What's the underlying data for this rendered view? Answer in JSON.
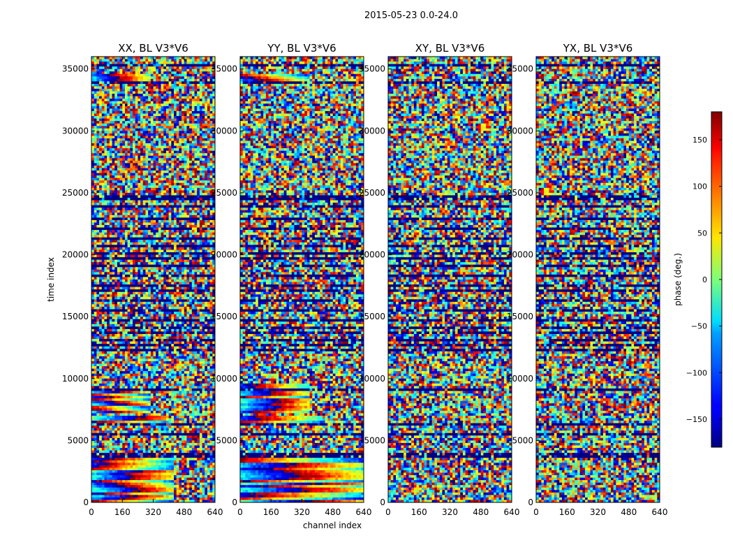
{
  "figure": {
    "suptitle": "2015-05-23 0.0-24.0"
  },
  "chart_data": {
    "type": "heatmap",
    "title": "2015-05-23 0.0-24.0",
    "xlabel": "channel index",
    "ylabel": "time index",
    "xlim": [
      0,
      640
    ],
    "ylim": [
      0,
      36000
    ],
    "x_ticks": [
      0,
      160,
      320,
      480,
      640
    ],
    "y_ticks": [
      0,
      5000,
      10000,
      15000,
      20000,
      25000,
      30000,
      35000
    ],
    "colormap": "jet",
    "colorbar": {
      "label": "phase (deg.)",
      "range": [
        -180,
        180
      ],
      "ticks": [
        -150,
        -100,
        -50,
        0,
        50,
        100,
        150
      ],
      "tick_labels": [
        "−150",
        "−100",
        "−50",
        "0",
        "50",
        "100",
        "150"
      ],
      "placement": "right"
    },
    "panels": [
      {
        "title": "XX, BL V3*V6",
        "flagged_time_bands": [
          [
            3700,
            3900
          ],
          [
            5500,
            5650
          ],
          [
            6300,
            6400
          ],
          [
            9050,
            9150
          ],
          [
            10950,
            11050
          ],
          [
            12200,
            12350
          ],
          [
            12700,
            12850
          ],
          [
            13100,
            13250
          ],
          [
            13600,
            13750
          ],
          [
            14100,
            14250
          ],
          [
            14600,
            14750
          ],
          [
            15500,
            15650
          ],
          [
            16300,
            16450
          ],
          [
            17000,
            17150
          ],
          [
            17500,
            17650
          ],
          [
            18200,
            18350
          ],
          [
            19000,
            19150
          ],
          [
            19600,
            19750
          ],
          [
            20000,
            20150
          ],
          [
            20700,
            20850
          ],
          [
            21300,
            21450
          ],
          [
            22000,
            22150
          ],
          [
            22900,
            23050
          ],
          [
            23800,
            23950
          ],
          [
            24500,
            24700
          ],
          [
            27950,
            28050
          ],
          [
            33850,
            33950
          ],
          [
            35200,
            35300
          ]
        ],
        "coherent_phase_regions": [
          {
            "time_range": [
              0,
              3600
            ],
            "channel_range": [
              0,
              420
            ]
          },
          {
            "time_range": [
              6200,
              7000
            ],
            "channel_range": [
              0,
              400
            ]
          },
          {
            "time_range": [
              7200,
              9000
            ],
            "channel_range": [
              0,
              300
            ]
          },
          {
            "time_range": [
              33800,
              34600
            ],
            "channel_range": [
              0,
              300
            ]
          }
        ]
      },
      {
        "title": "YY, BL V3*V6",
        "flagged_time_bands": [
          [
            3700,
            3900
          ],
          [
            5500,
            5650
          ],
          [
            6300,
            6400
          ],
          [
            9050,
            9150
          ],
          [
            10950,
            11050
          ],
          [
            12200,
            12350
          ],
          [
            12700,
            12850
          ],
          [
            13100,
            13250
          ],
          [
            13600,
            13750
          ],
          [
            14100,
            14250
          ],
          [
            14600,
            14750
          ],
          [
            15500,
            15650
          ],
          [
            16300,
            16450
          ],
          [
            17000,
            17150
          ],
          [
            17500,
            17650
          ],
          [
            18200,
            18350
          ],
          [
            19000,
            19150
          ],
          [
            19600,
            19750
          ],
          [
            20000,
            20150
          ],
          [
            20700,
            20850
          ],
          [
            21300,
            21450
          ],
          [
            22000,
            22150
          ],
          [
            22900,
            23050
          ],
          [
            23800,
            23950
          ],
          [
            24500,
            24700
          ],
          [
            27950,
            28050
          ],
          [
            33850,
            33950
          ],
          [
            35200,
            35300
          ]
        ],
        "coherent_phase_regions": [
          {
            "time_range": [
              0,
              3600
            ],
            "channel_range": [
              0,
              640
            ]
          },
          {
            "time_range": [
              6200,
              7000
            ],
            "channel_range": [
              0,
              420
            ]
          },
          {
            "time_range": [
              7200,
              9500
            ],
            "channel_range": [
              0,
              360
            ]
          },
          {
            "time_range": [
              33800,
              34600
            ],
            "channel_range": [
              0,
              360
            ]
          }
        ]
      },
      {
        "title": "XY, BL V3*V6",
        "flagged_time_bands": [
          [
            3700,
            3900
          ],
          [
            5500,
            5650
          ],
          [
            6300,
            6400
          ],
          [
            9050,
            9150
          ],
          [
            10950,
            11050
          ],
          [
            12200,
            12350
          ],
          [
            12700,
            12850
          ],
          [
            13100,
            13250
          ],
          [
            13600,
            13750
          ],
          [
            14100,
            14250
          ],
          [
            14600,
            14750
          ],
          [
            15500,
            15650
          ],
          [
            16300,
            16450
          ],
          [
            17000,
            17150
          ],
          [
            17500,
            17650
          ],
          [
            18200,
            18350
          ],
          [
            19000,
            19150
          ],
          [
            19600,
            19750
          ],
          [
            20000,
            20150
          ],
          [
            20700,
            20850
          ],
          [
            21300,
            21450
          ],
          [
            22000,
            22150
          ],
          [
            22900,
            23050
          ],
          [
            23800,
            23950
          ],
          [
            24500,
            24700
          ],
          [
            27950,
            28050
          ],
          [
            33850,
            33950
          ],
          [
            35200,
            35300
          ]
        ],
        "coherent_phase_regions": []
      },
      {
        "title": "YX, BL V3*V6",
        "flagged_time_bands": [
          [
            3700,
            3900
          ],
          [
            5500,
            5650
          ],
          [
            6300,
            6400
          ],
          [
            9050,
            9150
          ],
          [
            10950,
            11050
          ],
          [
            12200,
            12350
          ],
          [
            12700,
            12850
          ],
          [
            13100,
            13250
          ],
          [
            13600,
            13750
          ],
          [
            14100,
            14250
          ],
          [
            14600,
            14750
          ],
          [
            15500,
            15650
          ],
          [
            16300,
            16450
          ],
          [
            17000,
            17150
          ],
          [
            17500,
            17650
          ],
          [
            18200,
            18350
          ],
          [
            19000,
            19150
          ],
          [
            19600,
            19750
          ],
          [
            20000,
            20150
          ],
          [
            20700,
            20850
          ],
          [
            21300,
            21450
          ],
          [
            22000,
            22150
          ],
          [
            22900,
            23050
          ],
          [
            23800,
            23950
          ],
          [
            24500,
            24700
          ],
          [
            27950,
            28050
          ],
          [
            33850,
            33950
          ],
          [
            35200,
            35300
          ]
        ],
        "coherent_phase_regions": []
      }
    ]
  }
}
